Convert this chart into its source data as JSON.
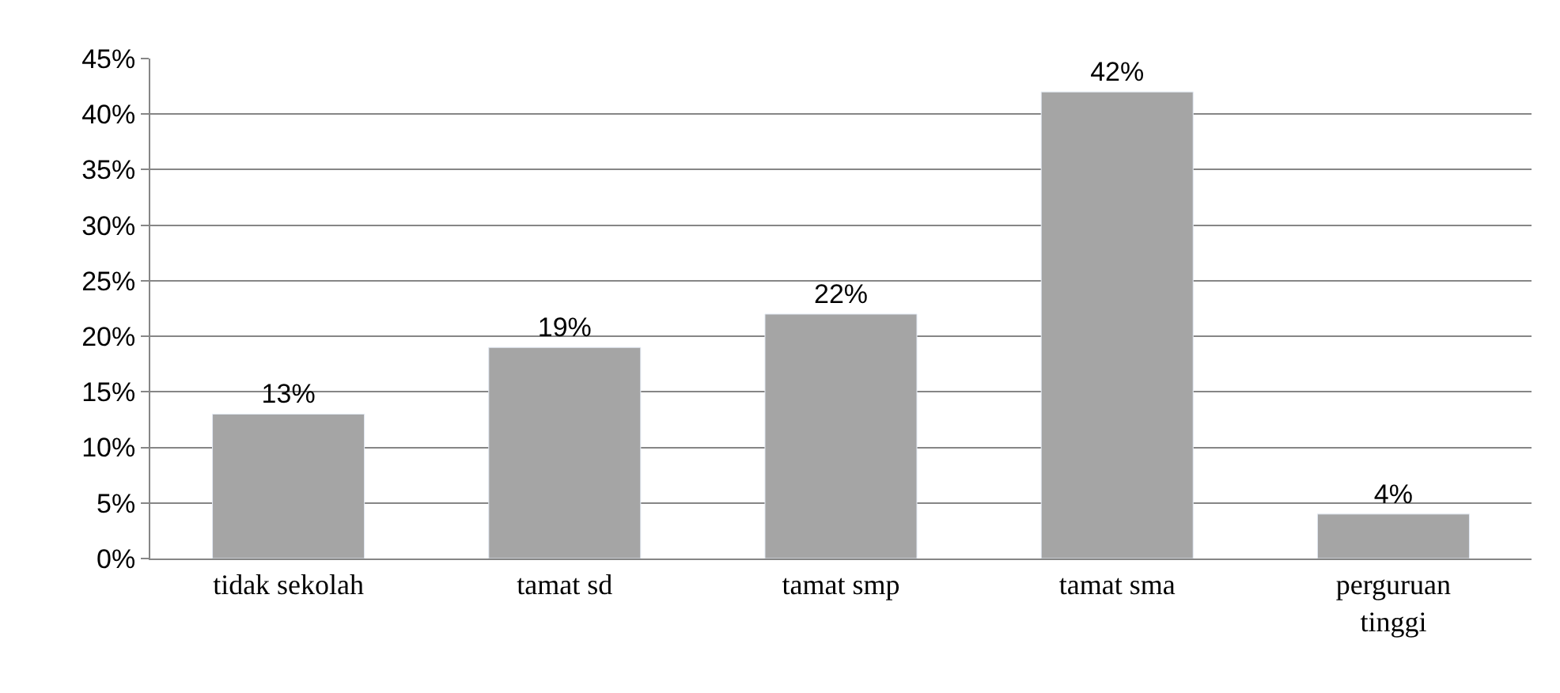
{
  "chart_data": {
    "type": "bar",
    "categories": [
      "tidak sekolah",
      "tamat sd",
      "tamat smp",
      "tamat sma",
      "perguruan tinggi"
    ],
    "values": [
      13,
      19,
      22,
      42,
      4
    ],
    "value_labels": [
      "13%",
      "19%",
      "22%",
      "42%",
      "4%"
    ],
    "color": "#a5a5a5",
    "ylim": [
      0,
      45
    ],
    "yticks": [
      {
        "value": 0,
        "label": "0%"
      },
      {
        "value": 5,
        "label": "5%"
      },
      {
        "value": 10,
        "label": "10%"
      },
      {
        "value": 15,
        "label": "15%"
      },
      {
        "value": 20,
        "label": "20%"
      },
      {
        "value": 25,
        "label": "25%"
      },
      {
        "value": 30,
        "label": "30%"
      },
      {
        "value": 35,
        "label": "35%"
      },
      {
        "value": 40,
        "label": "40%"
      },
      {
        "value": 45,
        "label": "45%"
      }
    ],
    "grid": "y",
    "legend": false
  }
}
